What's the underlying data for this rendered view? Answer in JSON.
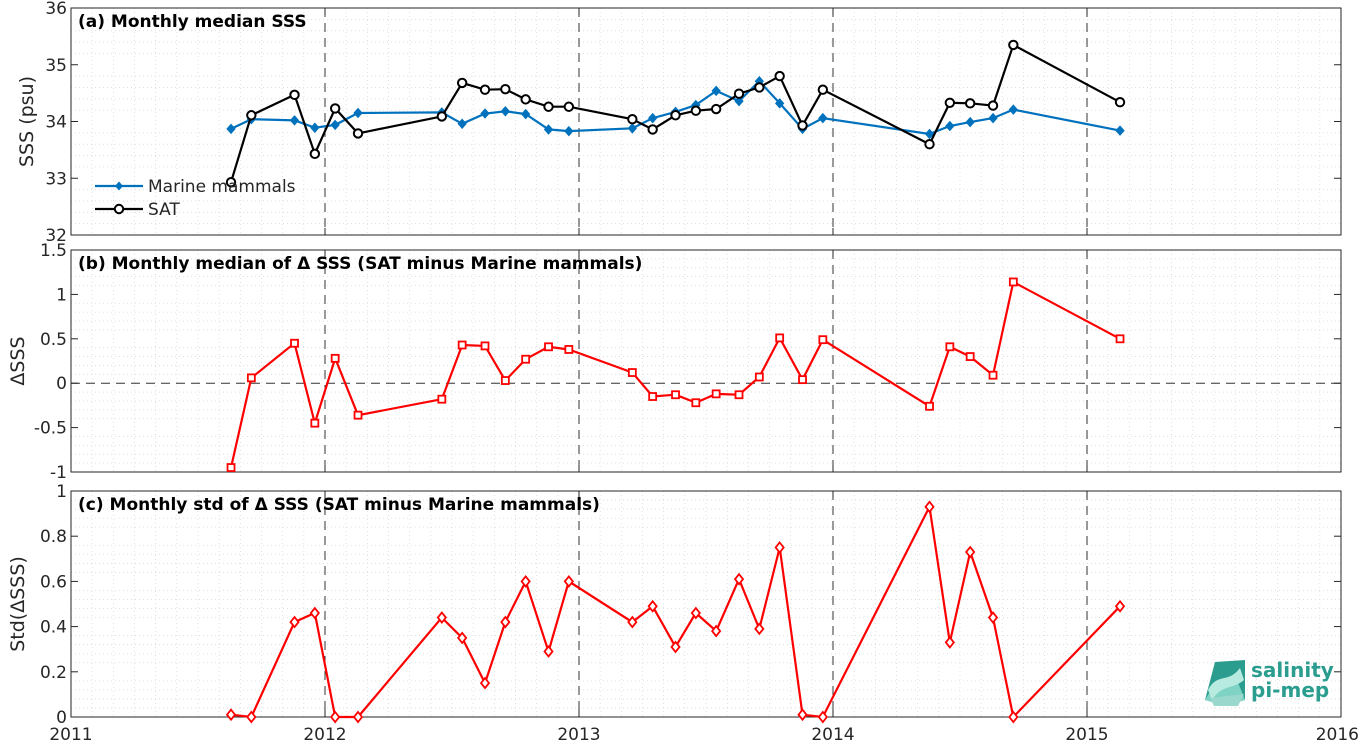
{
  "chart_data": [
    {
      "type": "line",
      "title": "(a) Monthly median SSS",
      "ylabel": "SSS (psu)",
      "xlim": [
        2011,
        2016
      ],
      "ylim": [
        32,
        36
      ],
      "yticks": [
        "32",
        "33",
        "34",
        "35",
        "36"
      ],
      "grid": true,
      "legend_position": "lower-left",
      "series": [
        {
          "name": "Marine mammals",
          "color": "#0072BD",
          "marker": "filled-diamond",
          "x": [
            2011.63,
            2011.71,
            2011.88,
            2011.96,
            2012.04,
            2012.13,
            2012.46,
            2012.54,
            2012.63,
            2012.71,
            2012.79,
            2012.88,
            2012.96,
            2013.21,
            2013.29,
            2013.38,
            2013.46,
            2013.54,
            2013.63,
            2013.71,
            2013.79,
            2013.88,
            2013.96,
            2014.38,
            2014.46,
            2014.54,
            2014.63,
            2014.71,
            2015.13
          ],
          "y": [
            33.87,
            34.04,
            34.02,
            33.89,
            33.94,
            34.15,
            34.16,
            33.96,
            34.14,
            34.18,
            34.13,
            33.86,
            33.83,
            33.88,
            34.06,
            34.17,
            34.29,
            34.54,
            34.36,
            34.71,
            34.32,
            33.87,
            34.06,
            33.78,
            33.92,
            33.99,
            34.06,
            34.21,
            33.84
          ]
        },
        {
          "name": "SAT",
          "color": "#000000",
          "marker": "open-circle",
          "x": [
            2011.63,
            2011.71,
            2011.88,
            2011.96,
            2012.04,
            2012.13,
            2012.46,
            2012.54,
            2012.63,
            2012.71,
            2012.79,
            2012.88,
            2012.96,
            2013.21,
            2013.29,
            2013.38,
            2013.46,
            2013.54,
            2013.63,
            2013.71,
            2013.79,
            2013.88,
            2013.96,
            2014.38,
            2014.46,
            2014.54,
            2014.63,
            2014.71,
            2015.13
          ],
          "y": [
            32.93,
            34.11,
            34.47,
            33.43,
            34.23,
            33.79,
            34.09,
            34.68,
            34.56,
            34.57,
            34.39,
            34.26,
            34.26,
            34.04,
            33.86,
            34.11,
            34.19,
            34.22,
            34.49,
            34.6,
            34.8,
            33.93,
            34.56,
            33.6,
            34.33,
            34.32,
            34.28,
            35.35,
            34.34
          ]
        }
      ]
    },
    {
      "type": "line",
      "title": "(b) Monthly median of Δ SSS (SAT minus Marine mammals)",
      "ylabel": "ΔSSS",
      "xlim": [
        2011,
        2016
      ],
      "ylim": [
        -1,
        1.5
      ],
      "yticks": [
        "-1",
        "-0.5",
        "0",
        "0.5",
        "1",
        "1.5"
      ],
      "grid": true,
      "series": [
        {
          "color": "#FF0000",
          "marker": "open-square",
          "x": [
            2011.63,
            2011.71,
            2011.88,
            2011.96,
            2012.04,
            2012.13,
            2012.46,
            2012.54,
            2012.63,
            2012.71,
            2012.79,
            2012.88,
            2012.96,
            2013.21,
            2013.29,
            2013.38,
            2013.46,
            2013.54,
            2013.63,
            2013.71,
            2013.79,
            2013.88,
            2013.96,
            2014.38,
            2014.46,
            2014.54,
            2014.63,
            2014.71,
            2015.13
          ],
          "y": [
            -0.95,
            0.06,
            0.45,
            -0.45,
            0.28,
            -0.36,
            -0.18,
            0.43,
            0.42,
            0.03,
            0.27,
            0.41,
            0.38,
            0.12,
            -0.15,
            -0.13,
            -0.22,
            -0.12,
            -0.13,
            0.07,
            0.51,
            0.04,
            0.49,
            -0.26,
            0.41,
            0.3,
            0.09,
            1.14,
            0.5
          ]
        }
      ]
    },
    {
      "type": "line",
      "title": "(c) Monthly std of Δ SSS (SAT minus Marine mammals)",
      "ylabel": "Std(ΔSSS)",
      "xlim": [
        2011,
        2016
      ],
      "ylim": [
        0,
        1
      ],
      "yticks": [
        "0",
        "0.2",
        "0.4",
        "0.6",
        "0.8",
        "1"
      ],
      "xticks": [
        "2011",
        "2012",
        "2013",
        "2014",
        "2015",
        "2016"
      ],
      "grid": true,
      "series": [
        {
          "color": "#FF0000",
          "marker": "open-diamond",
          "x": [
            2011.63,
            2011.71,
            2011.88,
            2011.96,
            2012.04,
            2012.13,
            2012.46,
            2012.54,
            2012.63,
            2012.71,
            2012.79,
            2012.88,
            2012.96,
            2013.21,
            2013.29,
            2013.38,
            2013.46,
            2013.54,
            2013.63,
            2013.71,
            2013.79,
            2013.88,
            2013.96,
            2014.38,
            2014.46,
            2014.54,
            2014.63,
            2014.71,
            2015.13
          ],
          "y": [
            0.01,
            0.0,
            0.42,
            0.46,
            0.0,
            0.0,
            0.44,
            0.35,
            0.15,
            0.42,
            0.6,
            0.29,
            0.6,
            0.42,
            0.49,
            0.31,
            0.46,
            0.38,
            0.61,
            0.39,
            0.75,
            0.01,
            0.0,
            0.93,
            0.33,
            0.73,
            0.44,
            0.0,
            0.49
          ]
        }
      ]
    }
  ],
  "logo": {
    "line1": "salinity",
    "line2": "pi-mep",
    "color": "#2a9d8f"
  }
}
